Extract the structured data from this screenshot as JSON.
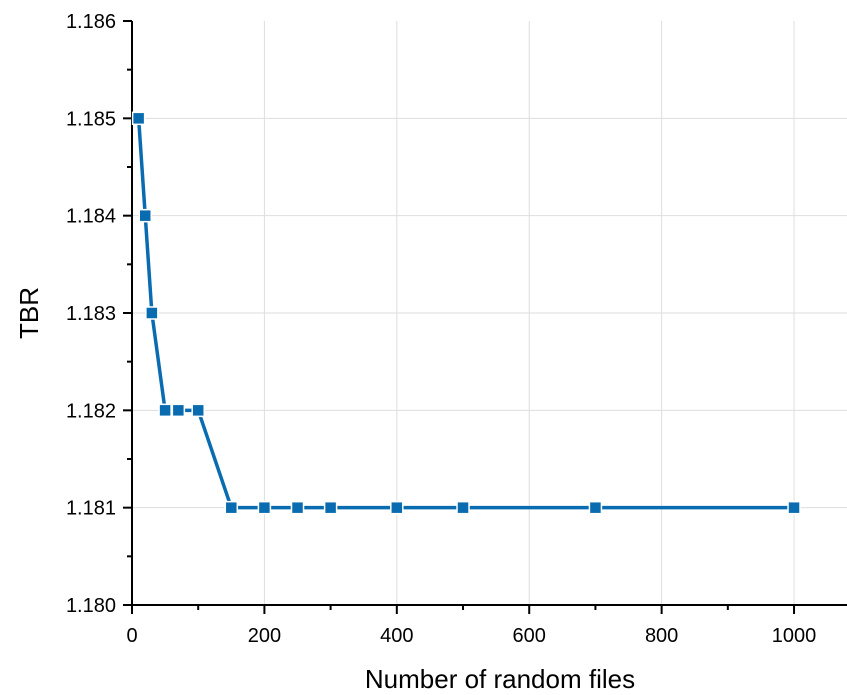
{
  "chart_data": {
    "type": "line",
    "title": "",
    "xlabel": "Number of random files",
    "ylabel": "TBR",
    "xlim": [
      0,
      1080
    ],
    "ylim": [
      1.18,
      1.186
    ],
    "xticks": [
      0,
      200,
      400,
      600,
      800,
      1000
    ],
    "xtick_labels": [
      "0",
      "200",
      "400",
      "600",
      "800",
      "1000"
    ],
    "yticks": [
      1.18,
      1.181,
      1.182,
      1.183,
      1.184,
      1.185,
      1.186
    ],
    "ytick_labels": [
      "1.180",
      "1.181",
      "1.182",
      "1.183",
      "1.184",
      "1.185",
      "1.186"
    ],
    "grid": true,
    "legend": "none",
    "series": [
      {
        "color": "#0a6cb0",
        "marker": "square",
        "x": [
          10,
          20,
          30,
          50,
          70,
          100,
          150,
          200,
          250,
          300,
          400,
          500,
          700,
          1000
        ],
        "y": [
          1.185,
          1.184,
          1.183,
          1.182,
          1.182,
          1.182,
          1.181,
          1.181,
          1.181,
          1.181,
          1.181,
          1.181,
          1.181,
          1.181
        ]
      }
    ]
  }
}
